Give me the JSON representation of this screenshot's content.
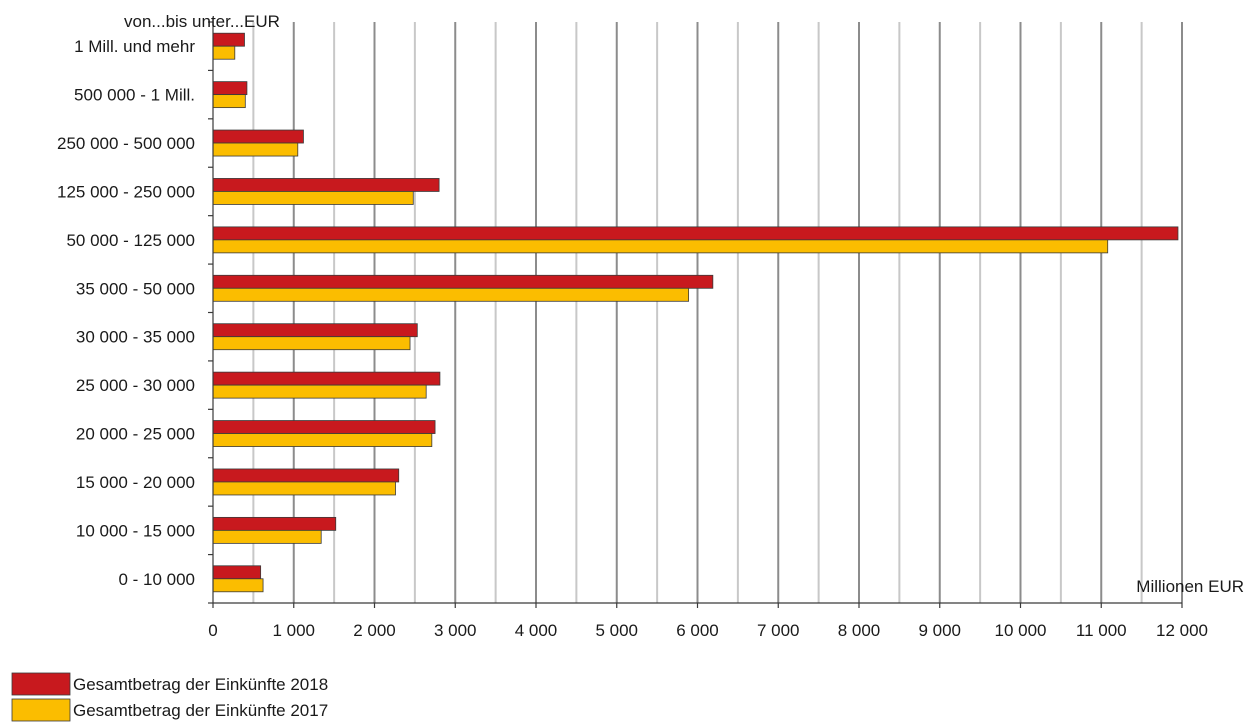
{
  "chart_data": {
    "type": "bar",
    "orientation": "horizontal",
    "categories": [
      "1 Mill. und mehr",
      "500 000 - 1 Mill.",
      "250 000 - 500 000",
      "125 000 - 250 000",
      "50 000 - 125 000",
      "35 000 - 50 000",
      "30 000 - 35 000",
      "25 000 - 30 000",
      "20 000 - 25 000",
      "15 000 - 20 000",
      "10 000 - 15 000",
      "0 - 10 000"
    ],
    "series": [
      {
        "name": "Gesamtbetrag der Einkünfte 2018",
        "color": "#c8191e",
        "values": [
          390,
          420,
          1120,
          2800,
          11950,
          6190,
          2530,
          2810,
          2750,
          2300,
          1520,
          590
        ]
      },
      {
        "name": "Gesamtbetrag der Einkünfte 2017",
        "color": "#fbbd00",
        "values": [
          270,
          400,
          1050,
          2480,
          11080,
          5890,
          2440,
          2640,
          2710,
          2260,
          1340,
          620
        ]
      }
    ],
    "category_axis_label": "von...bis unter...EUR",
    "value_axis_label": "Millionen EUR",
    "xlim": [
      0,
      12000
    ],
    "x_ticks": [
      0,
      1000,
      2000,
      3000,
      4000,
      5000,
      6000,
      7000,
      8000,
      9000,
      10000,
      11000,
      12000
    ],
    "x_tick_labels": [
      "0",
      "1 000",
      "2 000",
      "3 000",
      "4 000",
      "5 000",
      "6 000",
      "7 000",
      "8 000",
      "9 000",
      "10 000",
      "11 000",
      "12 000"
    ],
    "grid": {
      "major": "#8c8c8c",
      "minor": "#c8c8c8"
    },
    "legend_position": "bottom-left"
  }
}
